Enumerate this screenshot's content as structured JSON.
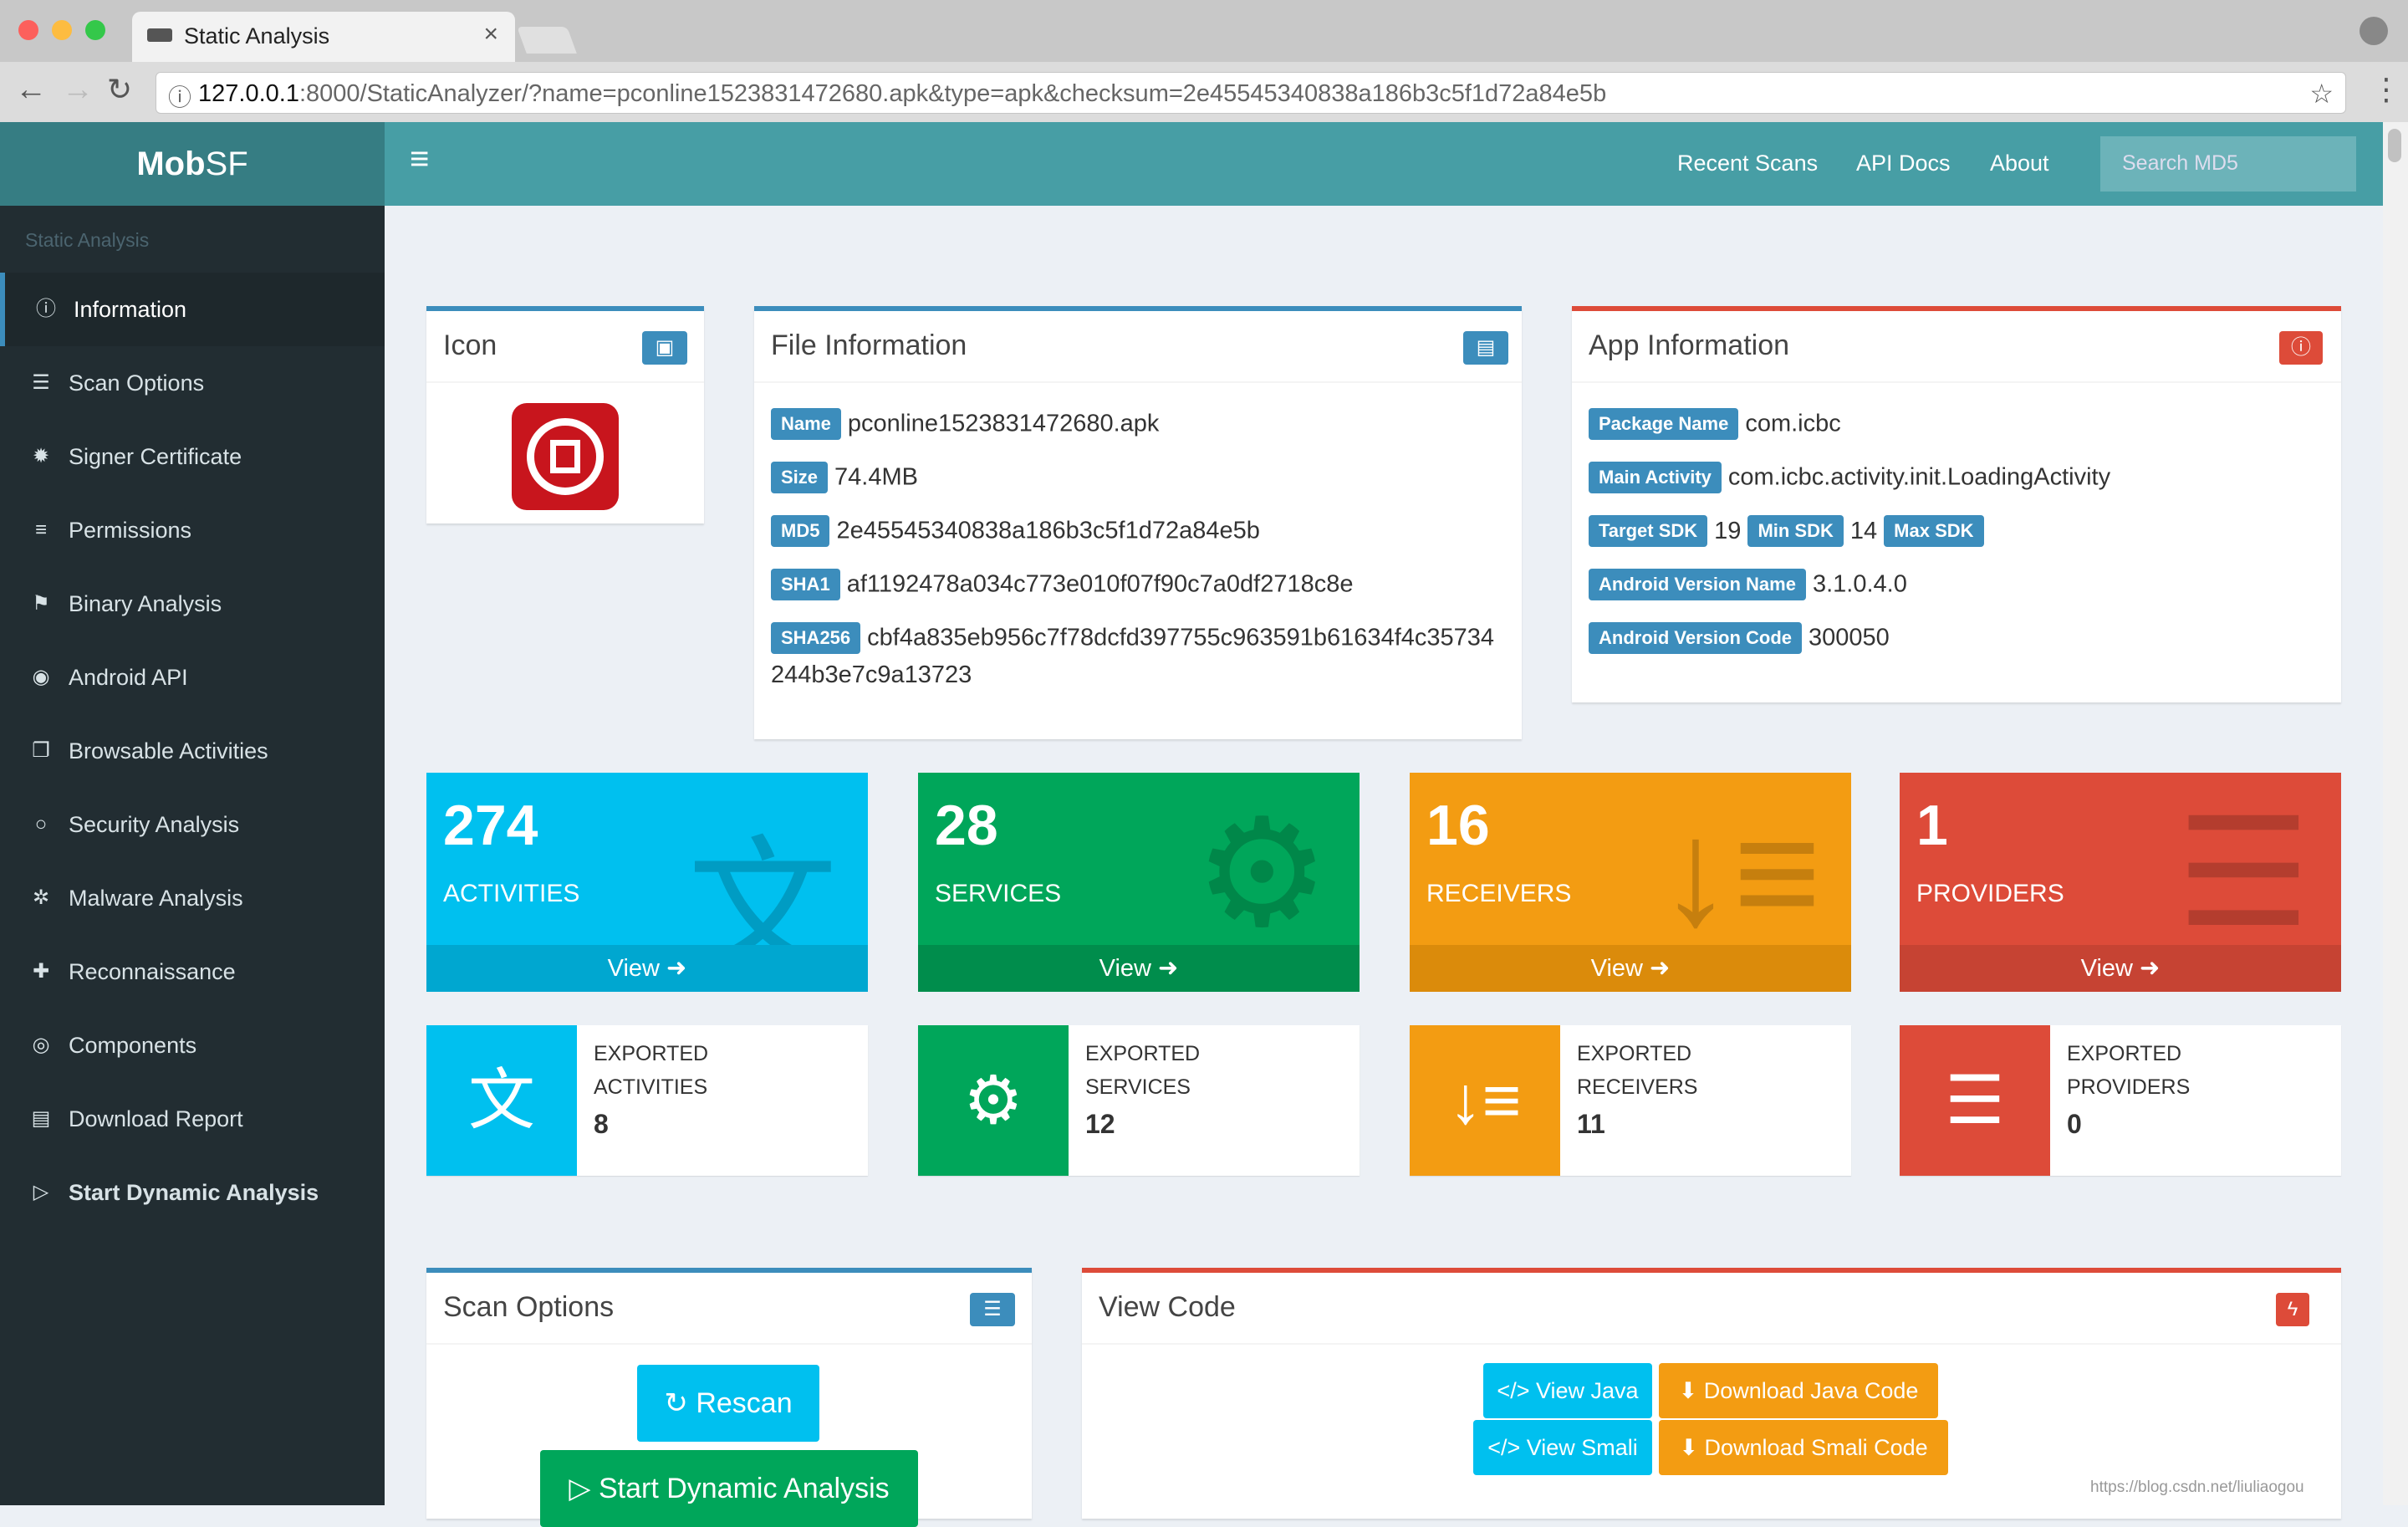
{
  "browser": {
    "tab_title": "Static Analysis",
    "url_host": "127.0.0.1",
    "url_rest": ":8000/StaticAnalyzer/?name=pconline1523831472680.apk&type=apk&checksum=2e45545340838a186b3c5f1d72a84e5b"
  },
  "brand": {
    "bold": "Mob",
    "light": "SF"
  },
  "sidebar": {
    "header": "Static Analysis",
    "items": [
      {
        "label": "Information",
        "icon": "info-circle-icon"
      },
      {
        "label": "Scan Options",
        "icon": "server-icon"
      },
      {
        "label": "Signer Certificate",
        "icon": "certificate-icon"
      },
      {
        "label": "Permissions",
        "icon": "list-icon"
      },
      {
        "label": "Binary Analysis",
        "icon": "flag-icon"
      },
      {
        "label": "Android API",
        "icon": "dot-circle-icon"
      },
      {
        "label": "Browsable Activities",
        "icon": "clone-icon"
      },
      {
        "label": "Security Analysis",
        "icon": "circle-icon"
      },
      {
        "label": "Malware Analysis",
        "icon": "bug-icon"
      },
      {
        "label": "Reconnaissance",
        "icon": "plus-icon"
      },
      {
        "label": "Components",
        "icon": "bullseye-icon"
      },
      {
        "label": "Download Report",
        "icon": "report-icon"
      },
      {
        "label": "Start Dynamic Analysis",
        "icon": "play-circle-icon"
      }
    ]
  },
  "topnav": {
    "recent": "Recent Scans",
    "api": "API Docs",
    "about": "About",
    "search_placeholder": "Search MD5"
  },
  "icon_box": {
    "title": "Icon"
  },
  "file_info": {
    "title": "File Information",
    "name_label": "Name",
    "name": "pconline1523831472680.apk",
    "size_label": "Size",
    "size": "74.4MB",
    "md5_label": "MD5",
    "md5": "2e45545340838a186b3c5f1d72a84e5b",
    "sha1_label": "SHA1",
    "sha1": "af1192478a034c773e010f07f90c7a0df2718c8e",
    "sha256_label": "SHA256",
    "sha256_a": "cbf4a835eb956c7f78dcfd397755c963591b61634f4c35734",
    "sha256_b": "244b3e7c9a13723"
  },
  "app_info": {
    "title": "App Information",
    "pkg_label": "Package Name",
    "pkg": "com.icbc",
    "main_label": "Main Activity",
    "main": "com.icbc.activity.init.LoadingActivity",
    "target_label": "Target SDK",
    "target": "19",
    "min_label": "Min SDK",
    "min": "14",
    "max_label": "Max SDK",
    "vname_label": "Android Version Name",
    "vname": "3.1.0.4.0",
    "vcode_label": "Android Version Code",
    "vcode": "300050"
  },
  "stats": [
    {
      "num": "274",
      "name": "ACTIVITIES",
      "view": "View",
      "color": "#00c0ef"
    },
    {
      "num": "28",
      "name": "SERVICES",
      "view": "View",
      "color": "#00a65a"
    },
    {
      "num": "16",
      "name": "RECEIVERS",
      "view": "View",
      "color": "#f39c12"
    },
    {
      "num": "1",
      "name": "PROVIDERS",
      "view": "View",
      "color": "#dd4b39"
    }
  ],
  "exported": [
    {
      "line1": "EXPORTED",
      "line2": "ACTIVITIES",
      "count": "8"
    },
    {
      "line1": "EXPORTED",
      "line2": "SERVICES",
      "count": "12"
    },
    {
      "line1": "EXPORTED",
      "line2": "RECEIVERS",
      "count": "11"
    },
    {
      "line1": "EXPORTED",
      "line2": "PROVIDERS",
      "count": "0"
    }
  ],
  "scan_options": {
    "title": "Scan Options",
    "rescan": "Rescan",
    "dynamic": "Start Dynamic Analysis"
  },
  "view_code": {
    "title": "View Code",
    "java": "View Java",
    "dl_java": "Download Java Code",
    "smali": "View Smali",
    "dl_smali": "Download Smali Code"
  },
  "watermark": "https://blog.csdn.net/liuliaogou"
}
